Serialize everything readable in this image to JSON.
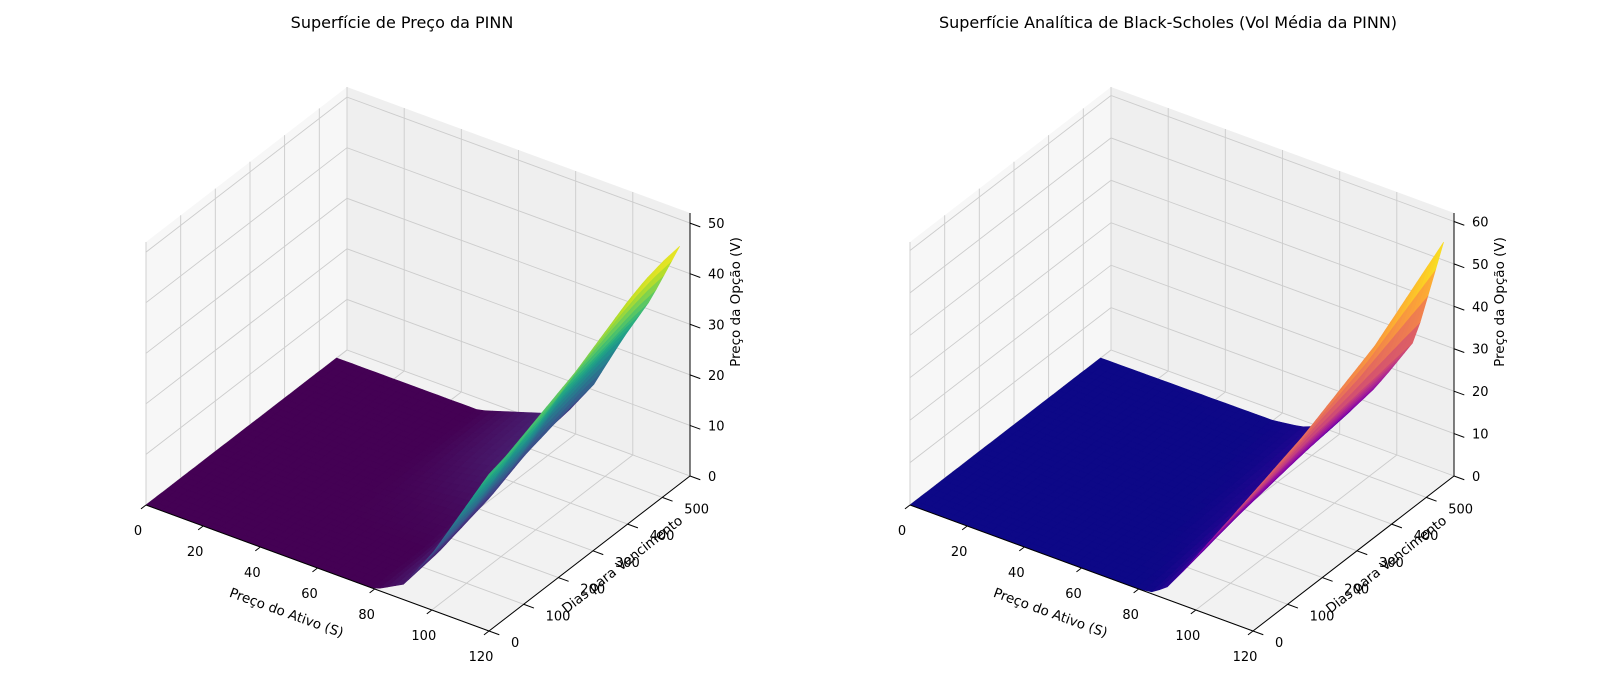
{
  "chart_data": [
    {
      "type": "surface3d",
      "title": "Superfície de Preço da PINN",
      "xlabel": "Preço do Ativo (S)",
      "ylabel": "Dias para Vencimento",
      "zlabel": "Preço da Opção (V)",
      "xlim": [
        0,
        120
      ],
      "ylim": [
        0,
        580
      ],
      "zlim": [
        0,
        52
      ],
      "xticks": [
        0,
        20,
        40,
        60,
        80,
        100,
        120
      ],
      "yticks": [
        0,
        100,
        200,
        300,
        400,
        500
      ],
      "zticks": [
        0,
        10,
        20,
        30,
        40,
        50
      ],
      "colormap": "viridis",
      "grid": true,
      "surface": {
        "S": [
          0,
          50,
          80,
          90,
          100,
          110,
          120
        ],
        "T": [
          0,
          50,
          100,
          150,
          200,
          250,
          300,
          350,
          400,
          450,
          500,
          550
        ],
        "V": [
          [
            0,
            0,
            0,
            0,
            0,
            0,
            0,
            0,
            0,
            0,
            0,
            0
          ],
          [
            0,
            0,
            0,
            0,
            0,
            0,
            0,
            0,
            0,
            0,
            0,
            0
          ],
          [
            0,
            0,
            0,
            0,
            0.5,
            1,
            2,
            3,
            4,
            4.5,
            5,
            5.5
          ],
          [
            3,
            3.5,
            4,
            5,
            6,
            7,
            8.5,
            10,
            11,
            12,
            13,
            13.5
          ],
          [
            11,
            12,
            13,
            14.5,
            16,
            17,
            19,
            21,
            22,
            23,
            24,
            24.5
          ],
          [
            21,
            22,
            23,
            25,
            26,
            28,
            30,
            31,
            32,
            33,
            34,
            34.5
          ],
          [
            31,
            32,
            33.5,
            35,
            36.5,
            38,
            40,
            42,
            44,
            45.5,
            46.5,
            47
          ]
        ]
      }
    },
    {
      "type": "surface3d",
      "title": "Superfície Analítica de Black-Scholes (Vol Média da PINN)",
      "xlabel": "Preço do Ativo (S)",
      "ylabel": "Dias para Vencimento",
      "zlabel": "Preço da Opção (V)",
      "xlim": [
        0,
        120
      ],
      "ylim": [
        0,
        580
      ],
      "zlim": [
        0,
        62
      ],
      "xticks": [
        0,
        20,
        40,
        60,
        80,
        100,
        120
      ],
      "yticks": [
        0,
        100,
        200,
        300,
        400,
        500
      ],
      "zticks": [
        0,
        10,
        20,
        30,
        40,
        50,
        60
      ],
      "colormap": "plasma",
      "grid": true,
      "surface": {
        "S": [
          0,
          60,
          70,
          80,
          85,
          90,
          95,
          100,
          110,
          120
        ],
        "T": [
          0,
          50,
          100,
          150,
          200,
          250,
          300,
          350,
          400,
          450,
          500,
          550
        ],
        "V": [
          [
            0,
            0,
            0,
            0,
            0,
            0,
            0,
            0,
            0,
            0,
            0,
            0
          ],
          [
            0,
            0,
            0,
            0,
            0,
            0,
            0,
            0,
            0,
            0,
            0.1,
            0.2
          ],
          [
            0,
            0,
            0,
            0,
            0,
            0.1,
            0.2,
            0.3,
            0.5,
            0.7,
            0.9,
            1.1
          ],
          [
            0,
            0.1,
            0.3,
            0.6,
            1,
            1.4,
            1.8,
            2.2,
            2.6,
            3,
            3.4,
            3.8
          ],
          [
            0.5,
            1,
            1.8,
            2.5,
            3.2,
            3.8,
            4.4,
            5,
            5.5,
            6,
            6.5,
            7
          ],
          [
            3,
            4,
            5,
            6,
            7,
            7.8,
            8.5,
            9.2,
            9.9,
            10.5,
            11,
            11.5
          ],
          [
            7.5,
            8.5,
            9.5,
            10.5,
            11.3,
            12,
            12.8,
            13.5,
            14.2,
            14.8,
            15.3,
            15.8
          ],
          [
            12.5,
            13.5,
            14.5,
            15.5,
            16.3,
            17,
            17.8,
            18.5,
            19.2,
            19.8,
            20.3,
            20.8
          ],
          [
            22.5,
            23.5,
            24.5,
            25.5,
            26.5,
            27.5,
            28.2,
            29,
            29.7,
            30.3,
            31,
            31.5
          ],
          [
            32.5,
            34,
            35.5,
            37,
            39,
            41,
            43,
            45,
            48,
            51,
            54,
            57
          ]
        ]
      }
    }
  ]
}
